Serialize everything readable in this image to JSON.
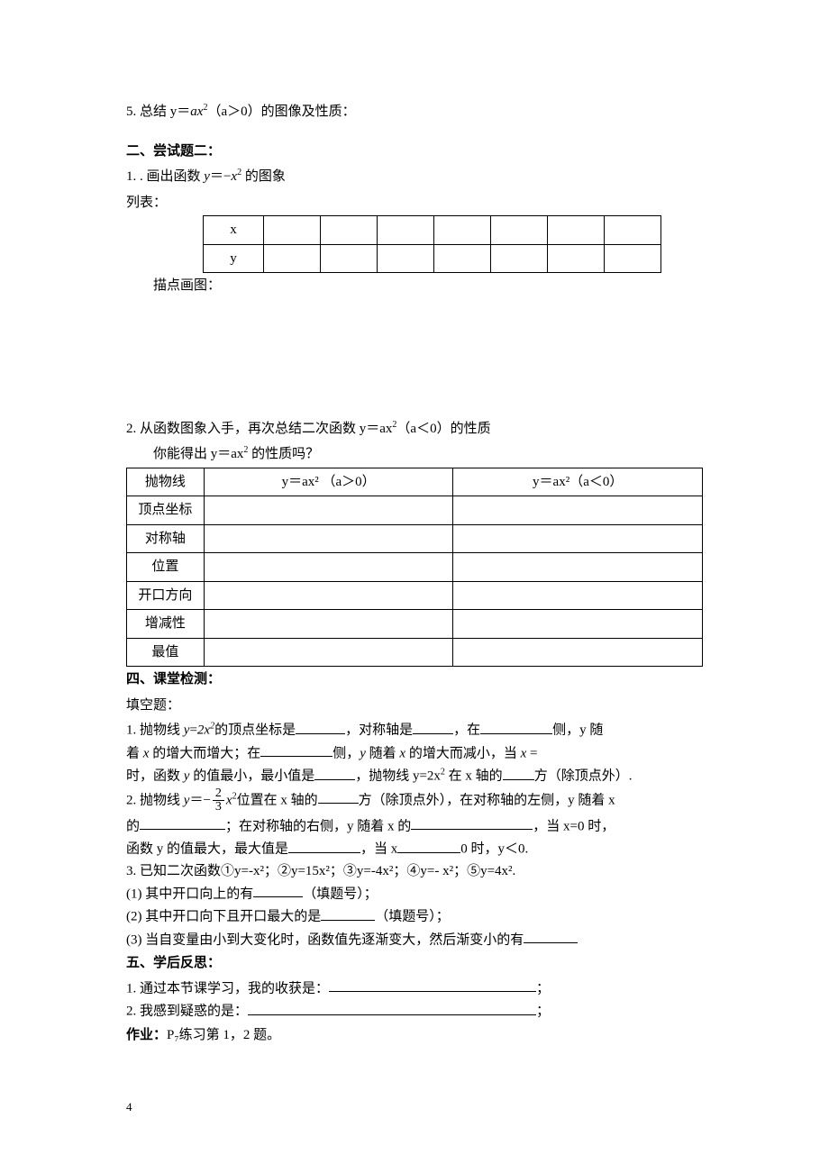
{
  "section5": {
    "text_pre": "5. 总结 y＝",
    "expr_a": "a",
    "expr_x": "x",
    "expr_exp": "2",
    "text_mid": "（a＞0）的图像及性质：",
    "fontsize": 15
  },
  "section2hdr": "二、尝试题二：",
  "item1": {
    "pre": "1. . 画出函数 ",
    "y": "y",
    "eq": "＝",
    "neg": "−",
    "x": "x",
    "exp": "2",
    "post": " 的图象"
  },
  "lbl_listtable": "列表：",
  "empty_table": {
    "row_labels": [
      "x",
      "y"
    ],
    "cols": 7,
    "col1_width": 64,
    "other_width": 60
  },
  "lbl_drawpts": "描点画图：",
  "item2": {
    "line1_pre": "2. 从函数图象入手，再次总结二次函数 y＝ax",
    "exp": "2",
    "line1_mid": "（a＜0）的性质",
    "line2_pre": "你能得出 y＝ax",
    "line2_post": " 的性质吗？"
  },
  "summary_table": {
    "col1_width": 80,
    "col2_width": 280,
    "col3_width": 280,
    "rows": [
      {
        "label": "抛物线",
        "c2": "y＝ax²   （a＞0）",
        "c3": "y＝ax²（a＜0）"
      },
      {
        "label": "顶点坐标",
        "c2": "",
        "c3": ""
      },
      {
        "label": "对称轴",
        "c2": "",
        "c3": ""
      },
      {
        "label": "位置",
        "c2": "",
        "c3": ""
      },
      {
        "label": "开口方向",
        "c2": "",
        "c3": ""
      },
      {
        "label": "增减性",
        "c2": "",
        "c3": ""
      },
      {
        "label": "最值",
        "c2": "",
        "c3": ""
      }
    ]
  },
  "section4hdr": "四、课堂检测：",
  "fill_label": "填空题：",
  "q1": {
    "a": "1. 抛物线 ",
    "y": "y",
    "eq": "=",
    "coef": "2x",
    "exp": "2",
    "b": "的顶点坐标是",
    "c": "，对称轴是",
    "d": "，在",
    "e": "侧，y 随",
    "line2a": "着 ",
    "xit": "x",
    "line2b": " 的增大而增大；在",
    "line2c": "侧，",
    "yit": "y",
    "line2d": " 随着 ",
    "line2e": " 的增大而减小，当 ",
    "line2f": " =",
    "line3a": "时，函数 ",
    "line3b": " 的值最小，最小值是",
    "line3c": "，抛物线 y=2x",
    "line3d": " 在 x 轴的",
    "line3e": "方（除顶点外）."
  },
  "q2": {
    "a": "2. 抛物线 ",
    "y": "y",
    "eq": "＝−",
    "num": "2",
    "den": "3",
    "xp": "x",
    "exp": "2",
    "b": "位置在 x 轴的",
    "c": "方（除顶点外），在对称轴的左侧，y 随着 x",
    "line2a": "的",
    "line2b": "；在对称轴的右侧，y 随着 x 的",
    "line2c": "，当 x=0 时，",
    "line3a": "函数 y 的值最大，最大值是",
    "line3b": "，当 x",
    "line3c": "0 时，y＜0."
  },
  "q3": {
    "a": "3. 已知二次函数①y=-x²；②y=15x²；③y=-4x²；④y=- x²；⑤y=4x².",
    "p1a": "(1) 其中开口向上的有",
    "p1b": "（填题号）；",
    "p2a": "(2) 其中开口向下且开口最大的是",
    "p2b": "（填题号）；",
    "p3a": "(3) 当自变量由小到大变化时，函数值先逐渐变大，然后渐变小的有"
  },
  "section5hdr": "五、学后反思：",
  "r1a": "1. 通过本节课学习，我的收获是：",
  "r1b": "；",
  "r2a": "2. 我感到疑惑的是：",
  "r2b": "；",
  "homework_lbl": "作业：",
  "homework_txt": "P₇练习第 1，2 题。",
  "page_number": "4",
  "colors": {
    "text": "#000000",
    "background": "#ffffff",
    "border": "#000000"
  },
  "typography": {
    "base_fontsize": 15,
    "line_height": 1.9,
    "font_family": "SimSun"
  },
  "blank_widths": {
    "short": 55,
    "med": 80,
    "long": 110,
    "xlong": 160,
    "xxlong": 270,
    "xxxlong": 310
  }
}
